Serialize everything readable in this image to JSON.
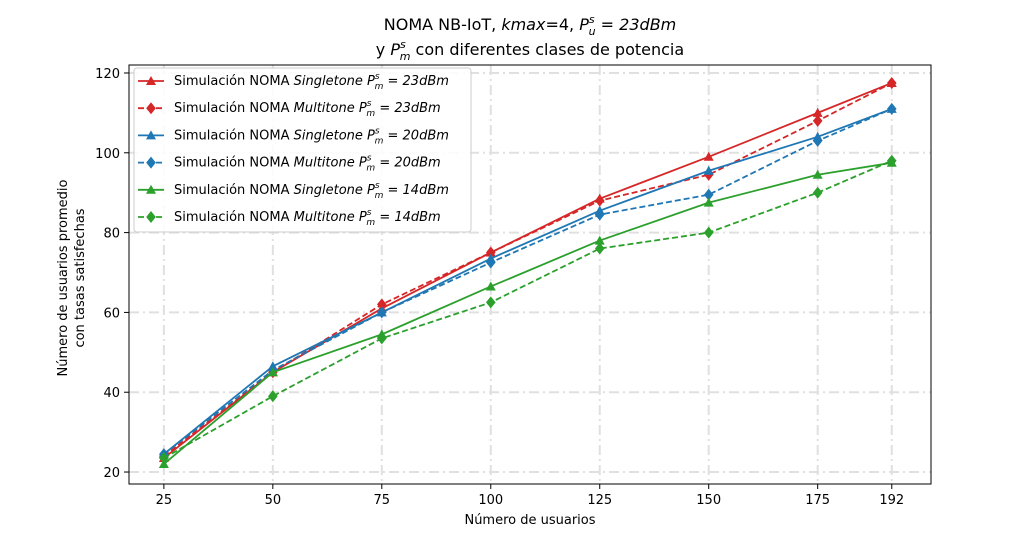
{
  "chart_data": {
    "type": "line",
    "title": {
      "line1": {
        "prefix": "NOMA NB-IoT, ",
        "kmax": "kmax",
        "mid": "=4, ",
        "P": "P",
        "sup": "s",
        "sub": "u",
        "suffix": " = 23dBm"
      },
      "line2": {
        "prefix": "y ",
        "P": "P",
        "sup": "s",
        "sub": "m",
        "suffix": " con diferentes clases de potencia"
      }
    },
    "xlabel": "Número de usuarios",
    "ylabel": [
      "Número de usuarios promedio",
      "con tasas satisfechas"
    ],
    "x": [
      25,
      50,
      75,
      100,
      125,
      150,
      175,
      192
    ],
    "x_tick_labels": [
      "25",
      "50",
      "75",
      "100",
      "125",
      "150",
      "175",
      "192"
    ],
    "xlim": [
      17,
      201
    ],
    "ylim": [
      17,
      122
    ],
    "y_ticks": [
      20,
      40,
      60,
      80,
      100,
      120
    ],
    "y_tick_labels": [
      "20",
      "40",
      "60",
      "80",
      "100",
      "120"
    ],
    "grid": true,
    "legend_position": "top-left",
    "series": [
      {
        "name_prefix": "Simulación NOMA ",
        "mode": "Singletone",
        "power": "23dBm",
        "color": "#d62728",
        "dashed": false,
        "marker": "triangle",
        "values": [
          23.5,
          45.0,
          61.0,
          75.0,
          88.5,
          99.0,
          110.0,
          117.5
        ]
      },
      {
        "name_prefix": "Simulación NOMA ",
        "mode": "Multitone",
        "power": "23dBm",
        "color": "#d62728",
        "dashed": true,
        "marker": "diamond",
        "values": [
          24.0,
          45.0,
          62.0,
          75.0,
          88.0,
          94.5,
          108.0,
          117.5
        ]
      },
      {
        "name_prefix": "Simulación NOMA ",
        "mode": "Singletone",
        "power": "20dBm",
        "color": "#1f77b4",
        "dashed": false,
        "marker": "triangle",
        "values": [
          24.5,
          46.5,
          60.0,
          73.5,
          85.5,
          95.5,
          104.0,
          111.0
        ]
      },
      {
        "name_prefix": "Simulación NOMA ",
        "mode": "Multitone",
        "power": "20dBm",
        "color": "#1f77b4",
        "dashed": true,
        "marker": "diamond",
        "values": [
          24.5,
          45.5,
          60.0,
          72.5,
          84.5,
          89.5,
          103.0,
          111.0
        ]
      },
      {
        "name_prefix": "Simulación NOMA ",
        "mode": "Singletone",
        "power": "14dBm",
        "color": "#2ca02c",
        "dashed": false,
        "marker": "triangle",
        "values": [
          22.0,
          45.0,
          54.5,
          66.5,
          78.0,
          87.5,
          94.5,
          97.5
        ]
      },
      {
        "name_prefix": "Simulación NOMA ",
        "mode": "Multitone",
        "power": "14dBm",
        "color": "#2ca02c",
        "dashed": true,
        "marker": "diamond",
        "values": [
          23.5,
          39.0,
          53.5,
          62.5,
          76.0,
          80.0,
          90.0,
          98.0
        ]
      }
    ],
    "legend_math": {
      "P": "P",
      "sup": "s",
      "sub": "m",
      "eq": " = "
    }
  }
}
